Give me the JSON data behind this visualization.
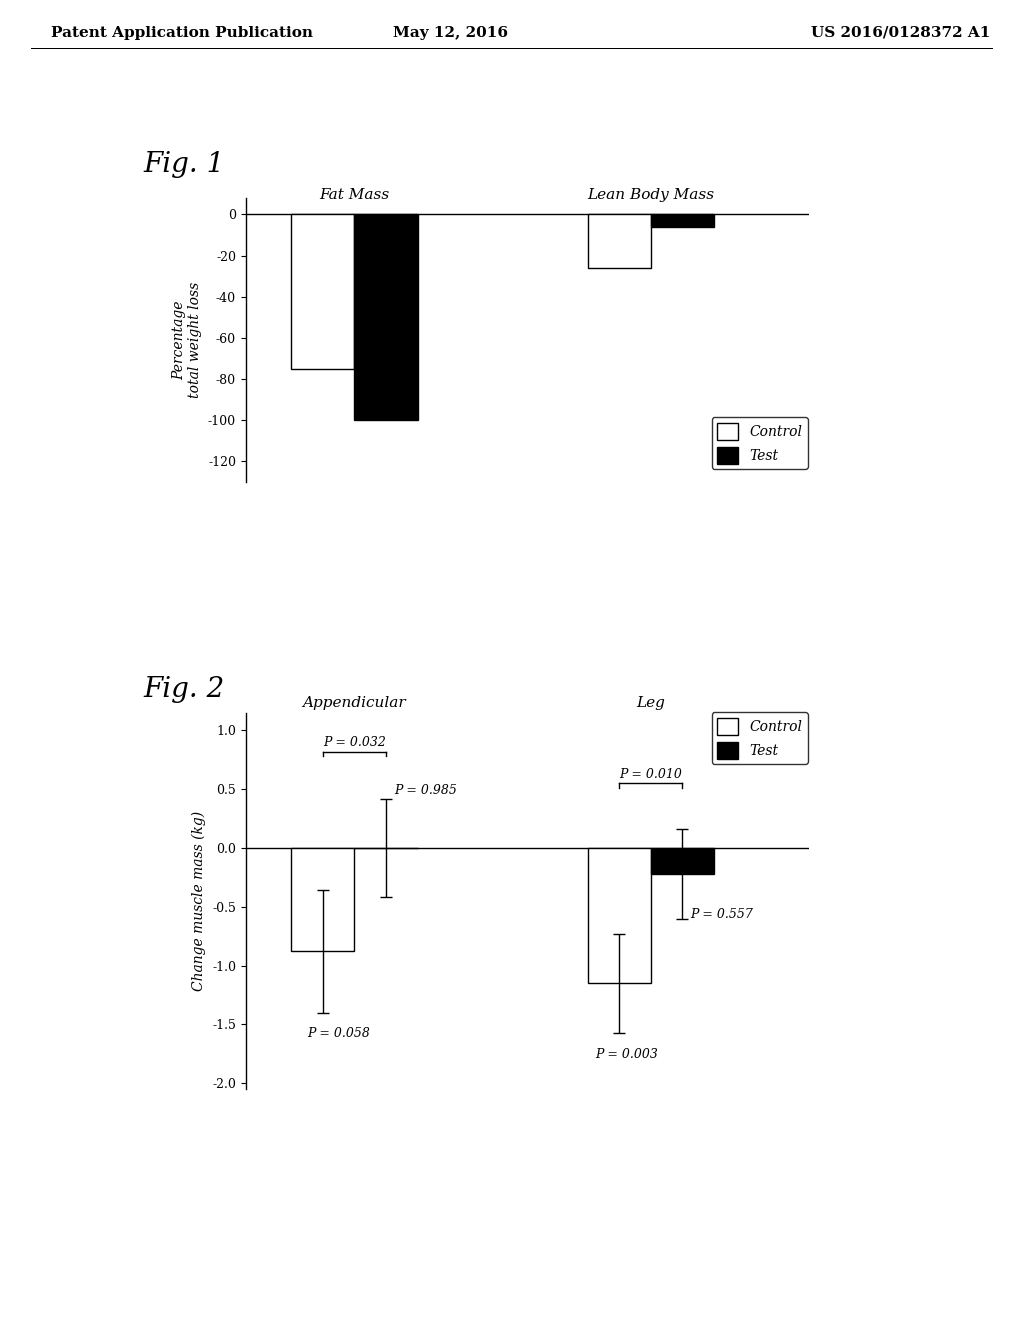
{
  "header_left": "Patent Application Publication",
  "header_mid": "May 12, 2016",
  "header_right": "US 2016/0128372 A1",
  "fig1_label": "Fig. 1",
  "fig1_ylabel": "Percentage\ntotal weight loss",
  "fig1_group1_label": "Fat Mass",
  "fig1_group2_label": "Lean Body Mass",
  "fig1_control_fat": -75,
  "fig1_test_fat": -100,
  "fig1_control_lean": -26,
  "fig1_test_lean": -6,
  "fig1_ylim": [
    -130,
    8
  ],
  "fig1_yticks": [
    0,
    -20,
    -40,
    -60,
    -80,
    -100,
    -120
  ],
  "fig2_label": "Fig. 2",
  "fig2_ylabel": "Change muscle mass (kg)",
  "fig2_group1_label": "Appendicular",
  "fig2_group2_label": "Leg",
  "fig2_control_app": -0.88,
  "fig2_test_app": 0.0,
  "fig2_control_app_err": 0.52,
  "fig2_test_app_err": 0.42,
  "fig2_control_leg": -1.15,
  "fig2_test_leg": -0.22,
  "fig2_control_leg_err": 0.42,
  "fig2_test_leg_err": 0.38,
  "fig2_ylim": [
    -2.05,
    1.15
  ],
  "fig2_yticks": [
    1.0,
    0.5,
    0.0,
    -0.5,
    -1.0,
    -1.5,
    -2.0
  ],
  "fig2_p_app_between": "P = 0.032",
  "fig2_p_app_control": "P = 0.058",
  "fig2_p_app_test": "P = 0.985",
  "fig2_p_leg_between": "P = 0.010",
  "fig2_p_leg_control": "P = 0.003",
  "fig2_p_leg_test": "P = 0.557",
  "legend_control": "Control",
  "legend_test": "Test",
  "bar_width": 0.32,
  "control_color": "#ffffff",
  "test_color": "#000000",
  "bar_edge_color": "#000000",
  "background_color": "#ffffff",
  "font_size_header": 11,
  "font_size_fig_label": 20,
  "font_size_axis": 10,
  "font_size_tick": 9,
  "font_size_legend": 10,
  "font_size_annotation": 9,
  "font_size_group_label": 11
}
